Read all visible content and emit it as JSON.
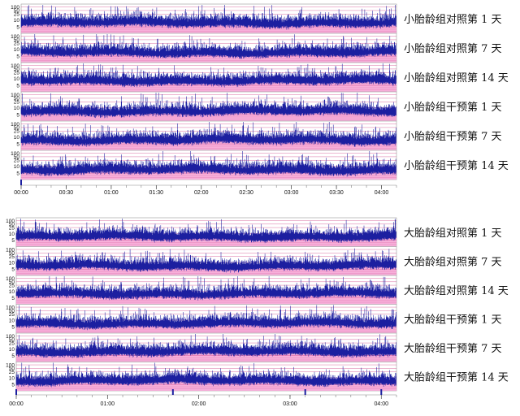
{
  "colors": {
    "trace": "#1c1fa0",
    "band_pink": "#f6a6d6",
    "grid_line": "#c8327a",
    "baseline": "#2c2c8c",
    "marker": "#1c1fa0"
  },
  "chart_data": [
    {
      "type": "line",
      "y_ticks": [
        "100",
        "50",
        "25",
        "10",
        "5"
      ],
      "x_ticks": [
        "00:00",
        "00:30",
        "01:00",
        "01:30",
        "02:00",
        "02:30",
        "03:00",
        "03:30",
        "04:00"
      ],
      "x_range": [
        "00:00",
        "04:10"
      ],
      "strips": [
        {
          "label": "小胎龄组对照第 1 天",
          "level": 27
        },
        {
          "label": "小胎龄组对照第 7 天",
          "level": 24
        },
        {
          "label": "小胎龄组对照第 14 天",
          "level": 30
        },
        {
          "label": "小胎龄组干预第 1 天",
          "level": 23
        },
        {
          "label": "小胎龄组干预第 7 天",
          "level": 25
        },
        {
          "label": "小胎龄组干预第 14 天",
          "level": 22
        }
      ]
    },
    {
      "type": "line",
      "y_ticks": [
        "100",
        "50",
        "25",
        "10",
        "5"
      ],
      "x_ticks": [
        "00:00",
        "01:00",
        "02:00",
        "03:00",
        "04:00"
      ],
      "x_range": [
        "00:00",
        "04:10"
      ],
      "strips": [
        {
          "label": "大胎龄组对照第 1 天",
          "level": 24
        },
        {
          "label": "大胎龄组对照第 7 天",
          "level": 22
        },
        {
          "label": "大胎龄组对照第 14 天",
          "level": 28
        },
        {
          "label": "大胎龄组干预第 1 天",
          "level": 23
        },
        {
          "label": "大胎龄组干预第 7 天",
          "level": 26
        },
        {
          "label": "大胎龄组干预第 14 天",
          "level": 25
        }
      ]
    }
  ]
}
